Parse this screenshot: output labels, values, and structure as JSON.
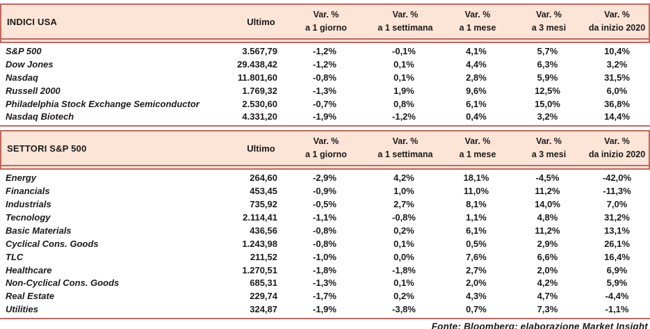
{
  "colors": {
    "header_bg": "#fce4d6",
    "border": "#c0685e",
    "text": "#1a1a1a",
    "page_bg": "#ffffff"
  },
  "column_headers": {
    "ultimo": "Ultimo",
    "var_label": "Var. %",
    "periods": [
      "a 1 giorno",
      "a 1 settimana",
      "a 1 mese",
      "a 3 mesi",
      "da inizio 2020"
    ]
  },
  "tables": [
    {
      "title": "INDICI USA",
      "rows": [
        {
          "name": "S&P 500",
          "ultimo": "3.567,79",
          "vars": [
            "-1,2%",
            "-0,1%",
            "4,1%",
            "5,7%",
            "10,4%"
          ]
        },
        {
          "name": "Dow Jones",
          "ultimo": "29.438,42",
          "vars": [
            "-1,2%",
            "0,1%",
            "4,4%",
            "6,3%",
            "3,2%"
          ]
        },
        {
          "name": "Nasdaq",
          "ultimo": "11.801,60",
          "vars": [
            "-0,8%",
            "0,1%",
            "2,8%",
            "5,9%",
            "31,5%"
          ]
        },
        {
          "name": "Russell 2000",
          "ultimo": "1.769,32",
          "vars": [
            "-1,3%",
            "1,9%",
            "9,6%",
            "12,5%",
            "6,0%"
          ]
        },
        {
          "name": "Philadelphia Stock Exchange Semiconductor",
          "ultimo": "2.530,60",
          "vars": [
            "-0,7%",
            "0,8%",
            "6,1%",
            "15,0%",
            "36,8%"
          ]
        },
        {
          "name": "Nasdaq Biotech",
          "ultimo": "4.331,20",
          "vars": [
            "-1,9%",
            "-1,2%",
            "0,4%",
            "3,2%",
            "14,4%"
          ]
        }
      ]
    },
    {
      "title": "SETTORI S&P 500",
      "rows": [
        {
          "name": "Energy",
          "ultimo": "264,60",
          "vars": [
            "-2,9%",
            "4,2%",
            "18,1%",
            "-4,5%",
            "-42,0%"
          ]
        },
        {
          "name": "Financials",
          "ultimo": "453,45",
          "vars": [
            "-0,9%",
            "1,0%",
            "11,0%",
            "11,2%",
            "-11,3%"
          ]
        },
        {
          "name": "Industrials",
          "ultimo": "735,92",
          "vars": [
            "-0,5%",
            "2,7%",
            "8,1%",
            "14,0%",
            "7,0%"
          ]
        },
        {
          "name": "Tecnology",
          "ultimo": "2.114,41",
          "vars": [
            "-1,1%",
            "-0,8%",
            "1,1%",
            "4,8%",
            "31,2%"
          ]
        },
        {
          "name": "Basic Materials",
          "ultimo": "436,56",
          "vars": [
            "-0,8%",
            "0,2%",
            "6,1%",
            "11,2%",
            "13,1%"
          ]
        },
        {
          "name": "Cyclical Cons. Goods",
          "ultimo": "1.243,98",
          "vars": [
            "-0,8%",
            "0,1%",
            "0,5%",
            "2,9%",
            "26,1%"
          ]
        },
        {
          "name": "TLC",
          "ultimo": "211,52",
          "vars": [
            "-1,0%",
            "0,0%",
            "7,6%",
            "6,6%",
            "16,4%"
          ]
        },
        {
          "name": "Healthcare",
          "ultimo": "1.270,51",
          "vars": [
            "-1,8%",
            "-1,8%",
            "2,7%",
            "2,0%",
            "6,9%"
          ]
        },
        {
          "name": "Non-Cyclical Cons. Goods",
          "ultimo": "685,31",
          "vars": [
            "-1,3%",
            "0,1%",
            "2,0%",
            "4,2%",
            "5,9%"
          ]
        },
        {
          "name": "Real Estate",
          "ultimo": "229,74",
          "vars": [
            "-1,7%",
            "0,2%",
            "4,3%",
            "4,7%",
            "-4,4%"
          ]
        },
        {
          "name": "Utilities",
          "ultimo": "324,87",
          "vars": [
            "-1,9%",
            "-3,8%",
            "0,7%",
            "7,3%",
            "-1,1%"
          ]
        }
      ]
    }
  ],
  "footer": "Fonte: Bloomberg; elaborazione Market Insight"
}
